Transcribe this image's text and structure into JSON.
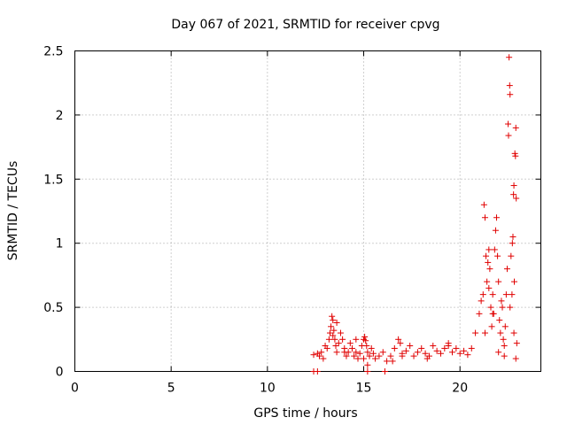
{
  "chart_data": {
    "type": "scatter",
    "title": "Day 067 of 2021, SRMTID for receiver cpvg",
    "xlabel": "GPS time / hours",
    "ylabel": "SRMTID / TECUs",
    "xlim": [
      0,
      24.2
    ],
    "ylim": [
      0,
      2.5
    ],
    "x_ticks": [
      0,
      5,
      10,
      15,
      20
    ],
    "x_tick_labels": [
      "0",
      "5",
      "10",
      "15",
      "20"
    ],
    "y_ticks": [
      0,
      0.5,
      1,
      1.5,
      2,
      2.5
    ],
    "y_tick_labels": [
      "0",
      "0.5",
      "1",
      "1.5",
      "2",
      "2.5"
    ],
    "grid": true,
    "marker": "+",
    "series_color": "#e00000",
    "x": [
      12.4,
      12.6,
      12.7,
      12.8,
      12.9,
      13.0,
      13.1,
      13.2,
      13.25,
      13.3,
      13.35,
      13.4,
      13.45,
      13.5,
      13.55,
      13.6,
      13.7,
      13.8,
      13.9,
      14.0,
      14.1,
      14.2,
      14.3,
      14.4,
      14.5,
      14.6,
      14.7,
      14.8,
      14.9,
      15.0,
      15.05,
      15.1,
      15.15,
      15.2,
      15.3,
      15.4,
      15.5,
      15.6,
      15.8,
      16.0,
      16.2,
      16.4,
      16.6,
      16.8,
      16.9,
      17.0,
      17.2,
      17.4,
      17.6,
      17.8,
      18.0,
      18.2,
      18.4,
      18.6,
      18.8,
      19.0,
      19.2,
      19.4,
      19.6,
      19.8,
      20.0,
      20.2,
      20.4,
      20.6,
      20.8,
      21.0,
      21.1,
      21.2,
      21.25,
      21.3,
      21.35,
      21.4,
      21.45,
      21.5,
      21.55,
      21.6,
      21.65,
      21.7,
      21.75,
      21.8,
      21.85,
      21.9,
      21.95,
      22.0,
      22.05,
      22.1,
      22.15,
      22.2,
      22.25,
      22.3,
      22.35,
      22.4,
      22.45,
      22.5,
      22.52,
      22.55,
      22.58,
      22.6,
      22.65,
      22.7,
      22.72,
      22.75,
      22.78,
      22.8,
      22.82,
      22.85,
      22.88,
      22.9,
      22.92,
      22.95,
      13.4,
      13.6,
      14.0,
      14.6,
      15.0,
      15.2,
      16.5,
      17.0,
      18.3,
      19.4,
      21.3,
      21.5,
      21.7,
      22.0,
      22.3,
      22.6,
      22.8,
      22.9,
      12.4,
      12.6,
      15.2,
      16.1
    ],
    "y": [
      0.13,
      0.14,
      0.12,
      0.15,
      0.1,
      0.2,
      0.18,
      0.25,
      0.3,
      0.35,
      0.43,
      0.4,
      0.32,
      0.25,
      0.2,
      0.15,
      0.22,
      0.3,
      0.25,
      0.18,
      0.12,
      0.15,
      0.22,
      0.18,
      0.12,
      0.15,
      0.1,
      0.14,
      0.2,
      0.25,
      0.27,
      0.24,
      0.2,
      0.15,
      0.12,
      0.18,
      0.14,
      0.1,
      0.12,
      0.15,
      0.08,
      0.12,
      0.18,
      0.25,
      0.22,
      0.14,
      0.16,
      0.2,
      0.12,
      0.15,
      0.18,
      0.14,
      0.12,
      0.2,
      0.16,
      0.14,
      0.18,
      0.22,
      0.15,
      0.18,
      0.14,
      0.16,
      0.13,
      0.18,
      0.3,
      0.45,
      0.55,
      0.6,
      1.3,
      1.2,
      0.9,
      0.7,
      0.85,
      0.95,
      0.8,
      0.5,
      0.35,
      0.6,
      0.45,
      0.95,
      1.1,
      1.2,
      0.9,
      0.7,
      0.4,
      0.3,
      0.55,
      0.5,
      0.25,
      0.2,
      0.35,
      0.6,
      0.8,
      1.93,
      1.84,
      2.45,
      2.23,
      2.16,
      0.9,
      0.6,
      1.0,
      1.05,
      1.38,
      1.45,
      0.7,
      1.7,
      1.68,
      1.9,
      1.35,
      0.22,
      0.28,
      0.38,
      0.15,
      0.25,
      0.1,
      0.05,
      0.08,
      0.12,
      0.1,
      0.2,
      0.3,
      0.65,
      0.45,
      0.15,
      0.12,
      0.5,
      0.3,
      0.1,
      0.0,
      0.0,
      0.0,
      0.0
    ]
  }
}
